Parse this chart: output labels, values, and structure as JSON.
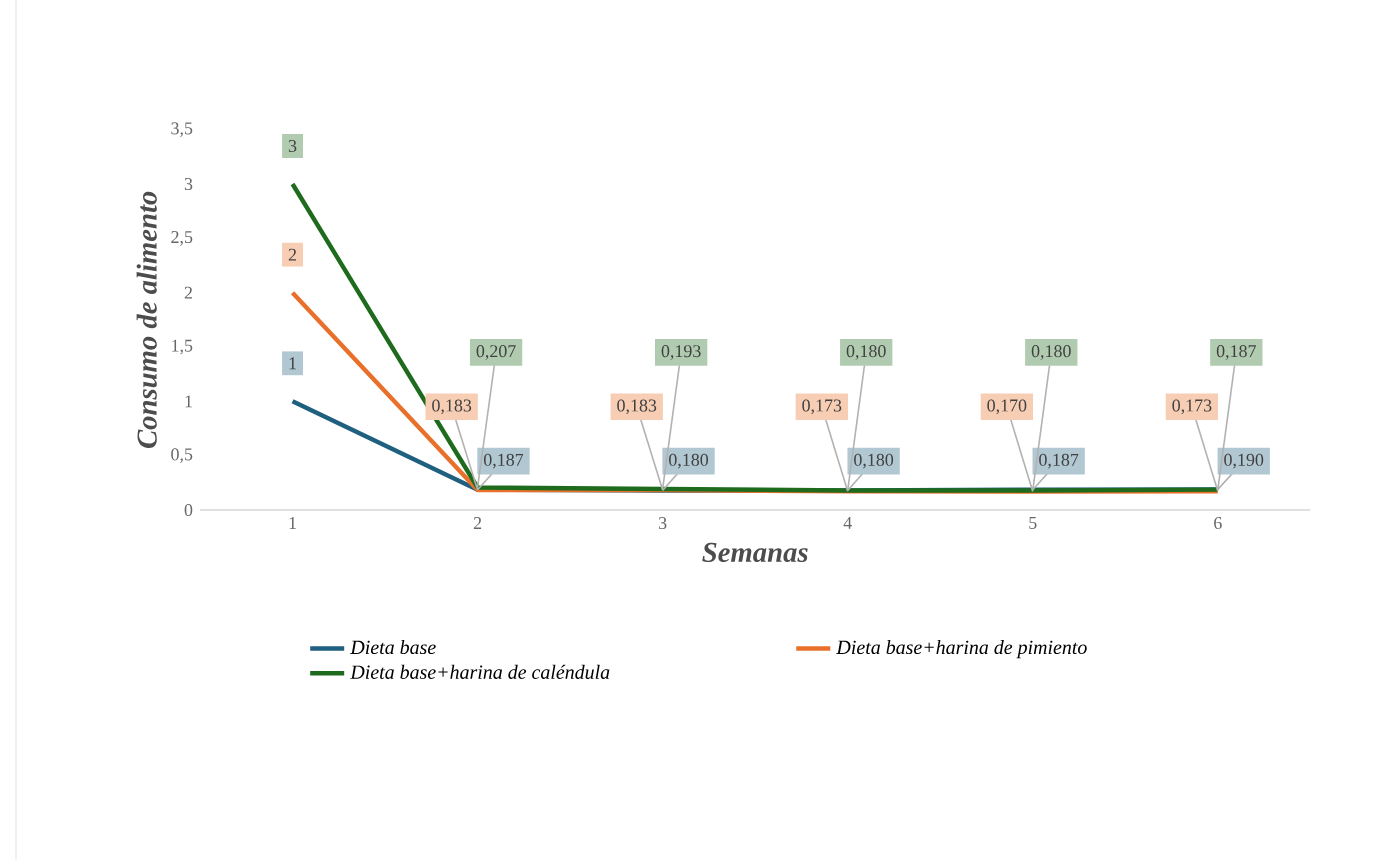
{
  "chart_data": {
    "type": "line",
    "xlabel": "Semanas",
    "ylabel": "Consumo de alimento",
    "categories": [
      "1",
      "2",
      "3",
      "4",
      "5",
      "6"
    ],
    "series": [
      {
        "name": "Dieta base",
        "color": "#1f5f7f",
        "values": [
          1,
          0.187,
          0.18,
          0.18,
          0.187,
          0.19
        ],
        "value_labels": [
          "1",
          "0,187",
          "0,180",
          "0,180",
          "0,187",
          "0,190"
        ]
      },
      {
        "name": "Dieta base+harina de pimiento",
        "color": "#e8702a",
        "values": [
          2,
          0.183,
          0.183,
          0.173,
          0.17,
          0.173
        ],
        "value_labels": [
          "2",
          "0,183",
          "0,183",
          "0,173",
          "0,170",
          "0,173"
        ]
      },
      {
        "name": "Dieta base+harina de caléndula",
        "color": "#1e6b1e",
        "values": [
          3,
          0.207,
          0.193,
          0.18,
          0.18,
          0.187
        ],
        "value_labels": [
          "3",
          "0,207",
          "0,193",
          "0,180",
          "0,180",
          "0,187"
        ]
      }
    ],
    "ylim": [
      0,
      3.5
    ],
    "yticks": [
      0,
      {
        "value": 0.5,
        "label": "0,5"
      },
      1,
      {
        "value": 1.5,
        "label": "1,5"
      },
      2,
      {
        "value": 2.5,
        "label": "2,5"
      },
      3,
      {
        "value": 3.5,
        "label": "3,5"
      }
    ],
    "grid": false,
    "legend": "bottom",
    "marker": "none",
    "line_style": "solid"
  }
}
